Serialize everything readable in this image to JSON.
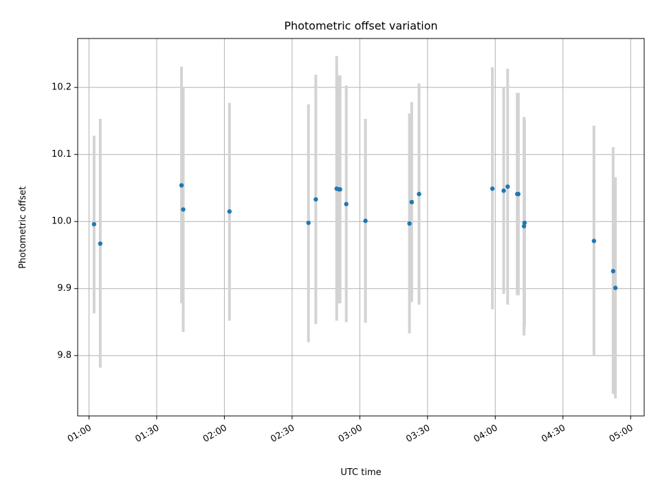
{
  "chart_data": {
    "type": "scatter",
    "title": "Photometric offset variation",
    "xlabel": "UTC time",
    "ylabel": "Photometric offset",
    "x_ticks": [
      "01:00",
      "01:30",
      "02:00",
      "02:30",
      "03:00",
      "03:30",
      "04:00",
      "04:30",
      "05:00"
    ],
    "y_ticks": [
      "9.8",
      "9.9",
      "10.0",
      "10.1",
      "10.2"
    ],
    "x_range": [
      "00:55",
      "05:06"
    ],
    "y_range": [
      9.71,
      10.273
    ],
    "grid": true,
    "colors": {
      "point": "#1f77b4",
      "errorbar": "#d3d3d3",
      "grid": "#b0b0b0"
    },
    "points": [
      {
        "time": "01:02:15",
        "value": 9.996,
        "low": 9.863,
        "high": 10.128
      },
      {
        "time": "01:05:00",
        "value": 9.967,
        "low": 9.782,
        "high": 10.153
      },
      {
        "time": "01:41:00",
        "value": 10.054,
        "low": 9.878,
        "high": 10.231
      },
      {
        "time": "01:41:45",
        "value": 10.018,
        "low": 9.835,
        "high": 10.2
      },
      {
        "time": "02:02:15",
        "value": 10.015,
        "low": 9.852,
        "high": 10.177
      },
      {
        "time": "02:37:15",
        "value": 9.998,
        "low": 9.82,
        "high": 10.175
      },
      {
        "time": "02:40:30",
        "value": 10.033,
        "low": 9.847,
        "high": 10.219
      },
      {
        "time": "02:49:45",
        "value": 10.049,
        "low": 9.852,
        "high": 10.247
      },
      {
        "time": "02:50:45",
        "value": 10.048,
        "low": 9.878,
        "high": 10.218
      },
      {
        "time": "02:51:15",
        "value": 10.048,
        "low": 9.878,
        "high": 10.218
      },
      {
        "time": "02:54:00",
        "value": 10.026,
        "low": 9.85,
        "high": 10.203
      },
      {
        "time": "03:02:30",
        "value": 10.001,
        "low": 9.849,
        "high": 10.153
      },
      {
        "time": "03:22:00",
        "value": 9.997,
        "low": 9.833,
        "high": 10.161
      },
      {
        "time": "03:23:00",
        "value": 10.029,
        "low": 9.88,
        "high": 10.178
      },
      {
        "time": "03:26:15",
        "value": 10.041,
        "low": 9.876,
        "high": 10.206
      },
      {
        "time": "03:58:45",
        "value": 10.049,
        "low": 9.869,
        "high": 10.23
      },
      {
        "time": "04:03:45",
        "value": 10.046,
        "low": 9.892,
        "high": 10.199
      },
      {
        "time": "04:05:30",
        "value": 10.052,
        "low": 9.876,
        "high": 10.228
      },
      {
        "time": "04:09:45",
        "value": 10.041,
        "low": 9.89,
        "high": 10.192
      },
      {
        "time": "04:10:15",
        "value": 10.041,
        "low": 9.89,
        "high": 10.192
      },
      {
        "time": "04:12:45",
        "value": 9.993,
        "low": 9.83,
        "high": 10.156
      },
      {
        "time": "04:13:00",
        "value": 9.998,
        "low": 9.843,
        "high": 10.153
      },
      {
        "time": "04:43:45",
        "value": 9.971,
        "low": 9.799,
        "high": 10.143
      },
      {
        "time": "04:52:15",
        "value": 9.926,
        "low": 9.743,
        "high": 10.111
      },
      {
        "time": "04:53:15",
        "value": 9.901,
        "low": 9.736,
        "high": 10.066
      }
    ]
  }
}
